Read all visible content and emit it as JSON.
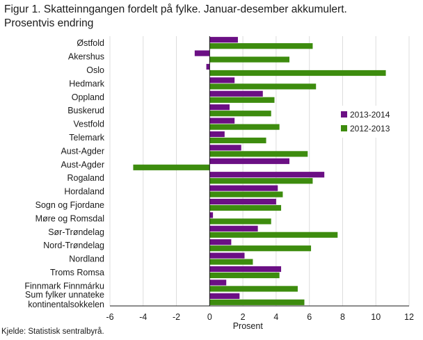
{
  "title": "Figur 1. Skatteinngangen fordelt på fylke. Januar-desember akkumulert.\nProsentvis endring",
  "source": "Kjelde: Statistisk sentralbyrå.",
  "chart_data": {
    "type": "bar",
    "orientation": "horizontal",
    "xlabel": "Prosent",
    "xlim": [
      -6,
      12
    ],
    "xticks": [
      -6,
      -4,
      -2,
      0,
      2,
      4,
      6,
      8,
      10,
      12
    ],
    "grid": "vertical",
    "legend_position": "right",
    "categories": [
      "Østfold",
      "Akershus",
      "Oslo",
      "Hedmark",
      "Oppland",
      "Buskerud",
      "Vestfold",
      "Telemark",
      "Aust-Agder",
      "Aust-Agder",
      "Rogaland",
      "Hordaland",
      "Sogn og Fjordane",
      "Møre og Romsdal",
      "Sør-Trøndelag",
      "Nord-Trøndelag",
      "Nordland",
      "Troms Romsa",
      "Finnmark Finnmárku",
      "Sum fylker unnateke\nkontinentalsokkelen"
    ],
    "series": [
      {
        "name": "2013-2014",
        "color": "#6b0f84",
        "values": [
          1.7,
          -0.9,
          -0.2,
          1.5,
          3.2,
          1.2,
          1.5,
          0.9,
          1.9,
          4.8,
          6.9,
          4.1,
          4.0,
          0.2,
          2.9,
          1.3,
          2.1,
          4.3,
          1.0,
          1.8
        ]
      },
      {
        "name": "2012-2013",
        "color": "#3d8c0e",
        "values": [
          6.2,
          4.8,
          10.6,
          6.4,
          3.9,
          3.7,
          4.2,
          3.4,
          5.9,
          -4.6,
          6.2,
          4.4,
          4.3,
          3.7,
          7.7,
          6.1,
          2.6,
          4.2,
          5.3,
          5.7
        ]
      }
    ]
  }
}
